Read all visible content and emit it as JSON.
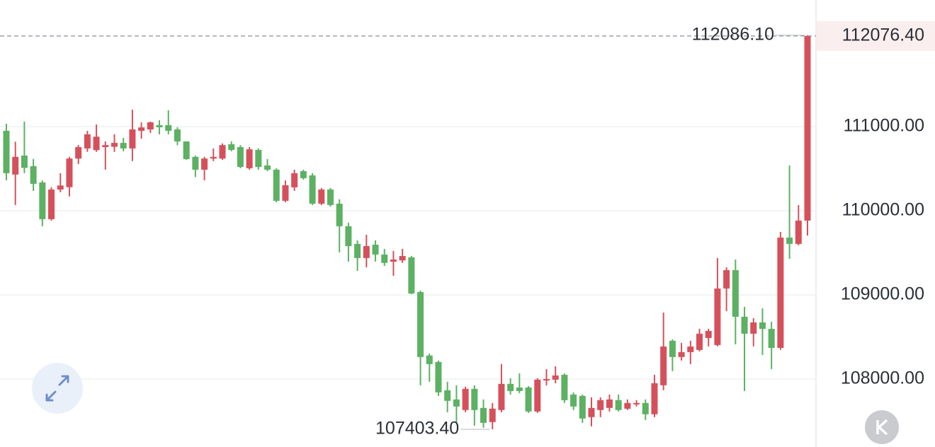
{
  "chart_data": {
    "type": "candlestick",
    "open": [
      110950,
      110430,
      110656,
      110530,
      110336,
      109900,
      110252,
      110280,
      110620,
      110740,
      110720,
      110756,
      110760,
      110806,
      110740,
      110950,
      110966,
      111017,
      111017,
      110966,
      110824,
      110640,
      110488,
      110620,
      110620,
      110790,
      110756,
      110505,
      110723,
      110538,
      110488,
      110118,
      110278,
      110470,
      110420,
      110084,
      110252,
      110084,
      109816,
      109606,
      109438,
      109597,
      109480,
      109395,
      109410,
      109446,
      109034,
      108280,
      108203,
      107867,
      107758,
      107632,
      107884,
      107657,
      107489,
      107632,
      107943,
      107900,
      107900,
      107615,
      107993,
      107993,
      108051,
      107816,
      107800,
      107548,
      107632,
      107657,
      107750,
      107648,
      107699,
      107716,
      107582,
      107926,
      108455,
      108262,
      108320,
      108346,
      108488,
      108404,
      109076,
      109294,
      108740,
      108539,
      108673,
      108597,
      108370,
      109681,
      109606,
      109883
    ],
    "high": [
      111034,
      110820,
      111060,
      110615,
      110360,
      110280,
      110446,
      110640,
      110780,
      110950,
      111025,
      110824,
      110908,
      110866,
      111200,
      111050,
      111060,
      111075,
      111193,
      110992,
      110824,
      110656,
      110640,
      110740,
      110800,
      110824,
      110780,
      110756,
      110740,
      110614,
      110505,
      110360,
      110488,
      110488,
      110446,
      110270,
      110270,
      110135,
      109858,
      109648,
      109715,
      109648,
      109547,
      109522,
      109547,
      109463,
      109051,
      108304,
      108220,
      107968,
      107926,
      107909,
      107926,
      107758,
      107716,
      108178,
      108010,
      108068,
      107917,
      108010,
      108118,
      108152,
      108068,
      107842,
      107816,
      107783,
      107783,
      107816,
      107816,
      107758,
      107750,
      107758,
      108051,
      108790,
      108472,
      108430,
      108455,
      108598,
      108598,
      109438,
      109328,
      109420,
      108858,
      108724,
      108841,
      108681,
      109748,
      110538,
      110068,
      112086.1
    ],
    "low": [
      110362,
      110068,
      110446,
      110235,
      109816,
      109883,
      110220,
      110170,
      110555,
      110700,
      110700,
      110488,
      110700,
      110706,
      110590,
      110857,
      110925,
      110908,
      110908,
      110780,
      110605,
      110400,
      110362,
      110590,
      110605,
      110706,
      110505,
      110488,
      110488,
      110470,
      110100,
      110100,
      110236,
      110370,
      110068,
      110068,
      110050,
      109505,
      109395,
      109286,
      109328,
      109396,
      109345,
      109227,
      109380,
      109009,
      107925,
      107967,
      107800,
      107606,
      107489,
      107606,
      107447,
      107422,
      107403.4,
      107606,
      107816,
      107833,
      107598,
      107598,
      107925,
      107950,
      107716,
      107632,
      107480,
      107438,
      107548,
      107615,
      107615,
      107632,
      107674,
      107514,
      107548,
      107867,
      108094,
      108220,
      108178,
      108329,
      108388,
      108388,
      108807,
      108413,
      107858,
      108388,
      108287,
      108118,
      108346,
      109429,
      109589,
      109706
    ],
    "close": [
      110446,
      110640,
      110510,
      110320,
      109900,
      110252,
      110300,
      110620,
      110756,
      110908,
      110880,
      110780,
      110806,
      110740,
      110966,
      110990,
      111050,
      110992,
      110950,
      110824,
      110614,
      110488,
      110620,
      110640,
      110780,
      110723,
      110520,
      110730,
      110520,
      110488,
      110118,
      110303,
      110446,
      110387,
      110084,
      110252,
      110068,
      109816,
      109580,
      109438,
      109580,
      109480,
      109380,
      109420,
      109462,
      109017,
      108262,
      108178,
      107842,
      107741,
      107674,
      107884,
      107632,
      107480,
      107649,
      107943,
      107858,
      107858,
      107615,
      107993,
      108000,
      108043,
      107749,
      107674,
      107531,
      107657,
      107750,
      107758,
      107632,
      107716,
      107716,
      107582,
      107951,
      108387,
      108262,
      108320,
      108387,
      108539,
      108572,
      109076,
      109294,
      108740,
      108539,
      108673,
      108597,
      108370,
      109681,
      109606,
      109883,
      112076.4
    ],
    "up_color": "#d6505b",
    "down_color": "#5cb163",
    "ylim": [
      107193,
      112504
    ],
    "yticks": [
      {
        "value": 108000,
        "label": "108000.00"
      },
      {
        "value": 109000,
        "label": "109000.00"
      },
      {
        "value": 110000,
        "label": "110000.00"
      },
      {
        "value": 111000,
        "label": "111000.00"
      }
    ],
    "grid": true,
    "annotations": [
      {
        "value": 112086.1,
        "label": "112086.10"
      },
      {
        "value": 107403.4,
        "label": "107403.40"
      }
    ],
    "last_price": {
      "value": 112076.4,
      "label": "112076.40"
    }
  }
}
